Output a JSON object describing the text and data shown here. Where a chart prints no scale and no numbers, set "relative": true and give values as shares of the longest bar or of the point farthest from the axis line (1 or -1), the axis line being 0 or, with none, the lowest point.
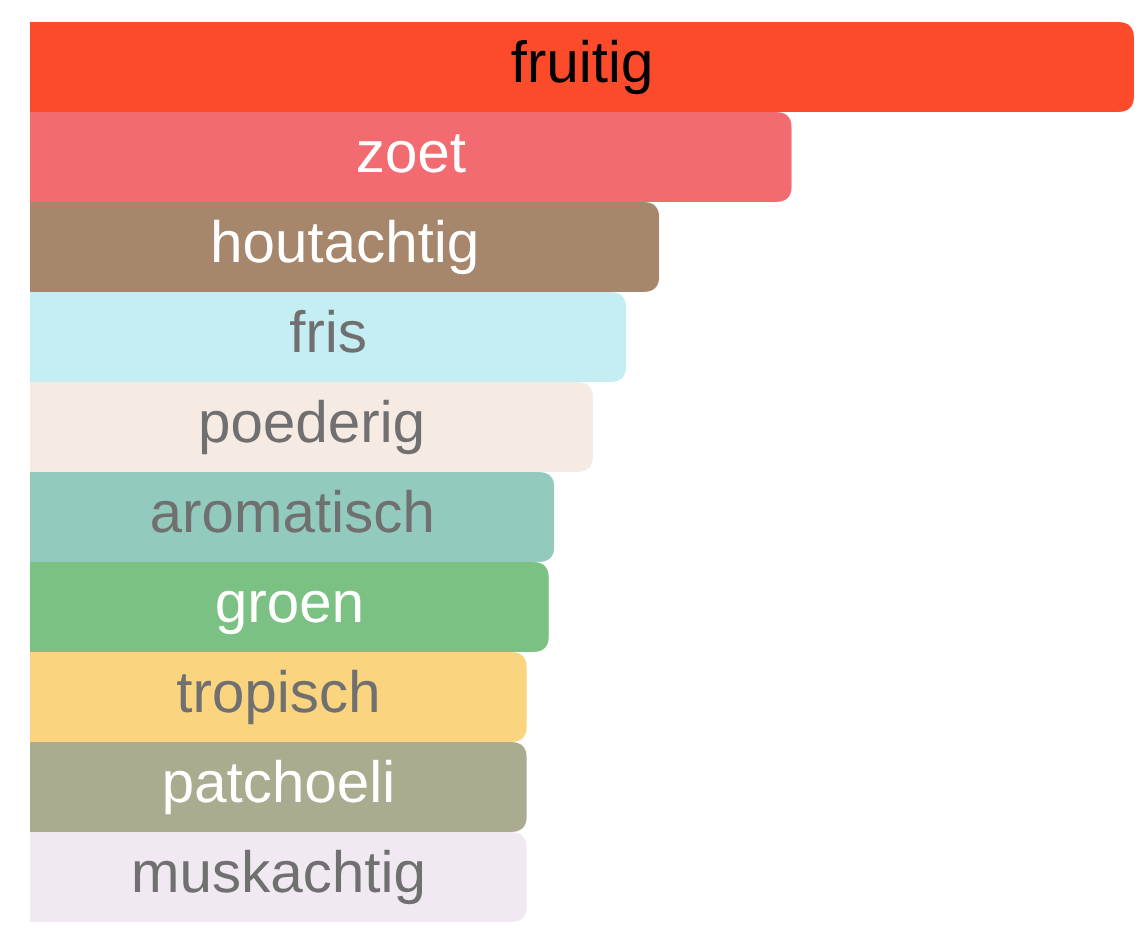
{
  "chart_data": {
    "type": "bar",
    "orientation": "horizontal",
    "relative": true,
    "categories": [
      "fruitig",
      "zoet",
      "houtachtig",
      "fris",
      "poederig",
      "aromatisch",
      "groen",
      "tropisch",
      "patchoeli",
      "muskachtig"
    ],
    "values": [
      1,
      0.69,
      0.57,
      0.54,
      0.51,
      0.475,
      0.47,
      0.45,
      0.45,
      0.45
    ],
    "colors": [
      "#fc4b2b",
      "#f26b71",
      "#a7876b",
      "#c4eef3",
      "#f5ebe2",
      "#92cbbd",
      "#7cc184",
      "#fbd47f",
      "#abab90",
      "#f1e9f2"
    ]
  }
}
